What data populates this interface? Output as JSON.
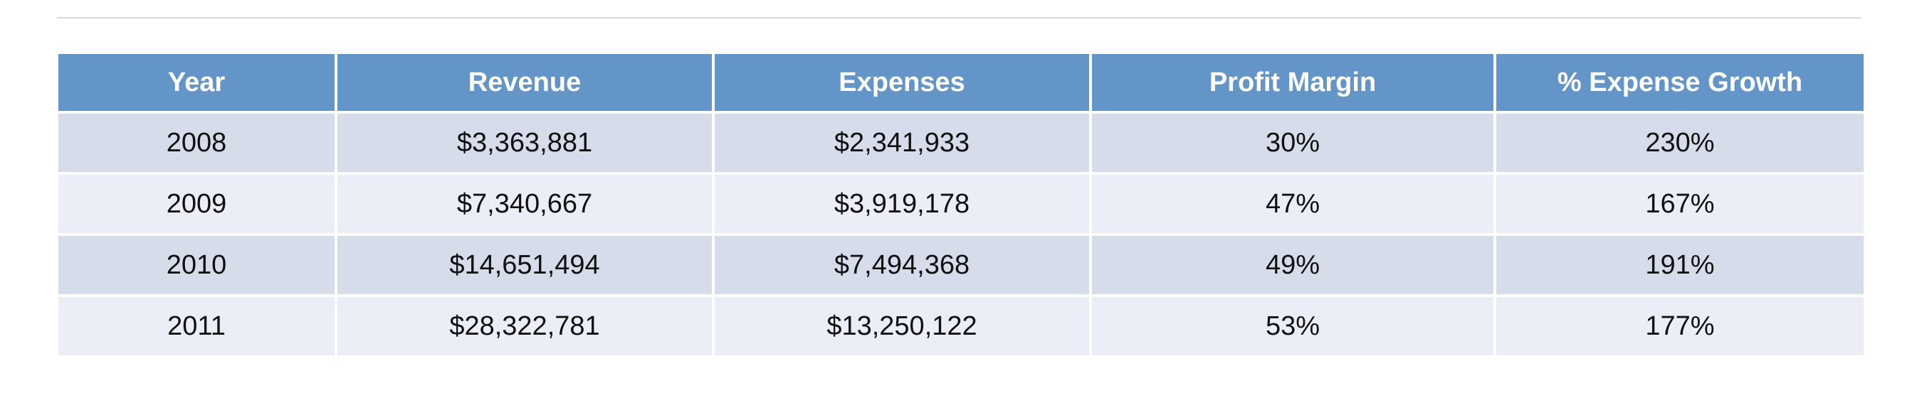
{
  "table": {
    "headers": [
      "Year",
      "Revenue",
      "Expenses",
      "Profit Margin",
      "% Expense Growth"
    ],
    "rows": [
      [
        "2008",
        "$3,363,881",
        "$2,341,933",
        "30%",
        "230%"
      ],
      [
        "2009",
        "$7,340,667",
        "$3,919,178",
        "47%",
        "167%"
      ],
      [
        "2010",
        "$14,651,494",
        "$7,494,368",
        "49%",
        "191%"
      ],
      [
        "2011",
        "$28,322,781",
        "$13,250,122",
        "53%",
        "177%"
      ]
    ]
  },
  "colors": {
    "header_bg": "#6495c8",
    "header_text": "#ffffff",
    "row_odd_bg": "#d6dcea",
    "row_even_bg": "#ebeef6",
    "divider": "#d9d9d9"
  }
}
